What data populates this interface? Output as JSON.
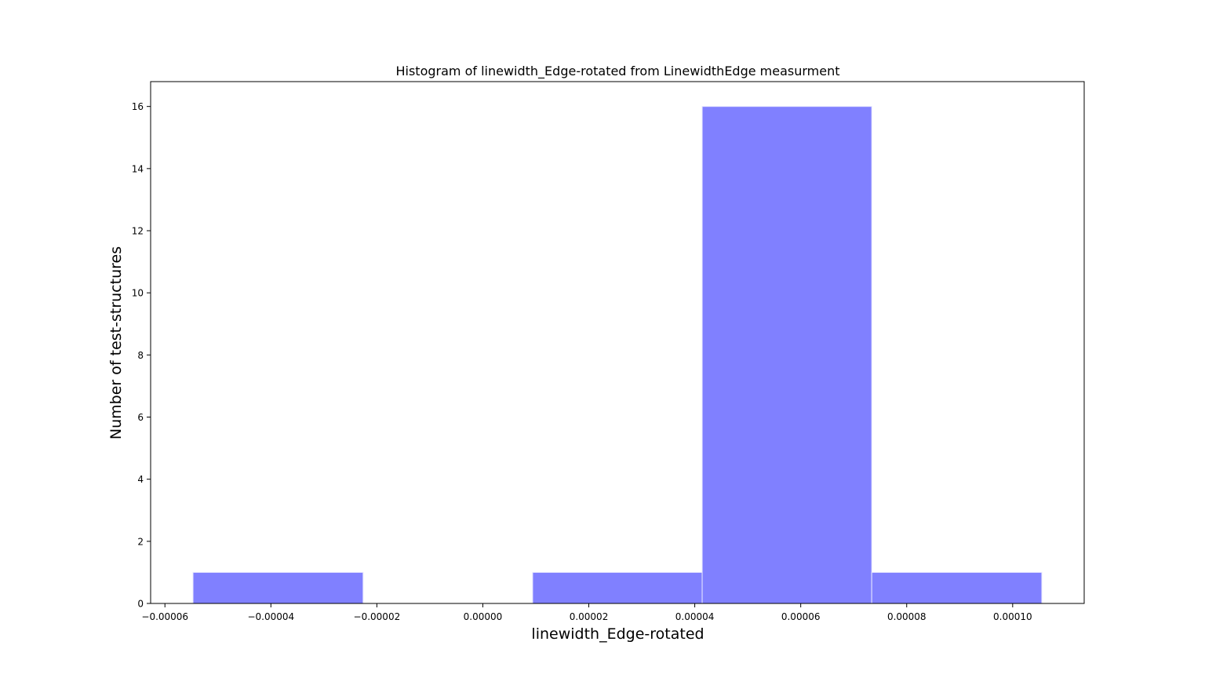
{
  "chart_data": {
    "type": "bar",
    "title": "Histogram of linewidth_Edge-rotated from LinewidthEdge measurment",
    "xlabel": "linewidth_Edge-rotated",
    "ylabel": "Number of test-structures",
    "bins": [
      {
        "x0": -5.47e-05,
        "x1": -2.26e-05,
        "count": 1
      },
      {
        "x0": -2.26e-05,
        "x1": 9.4e-06,
        "count": 0
      },
      {
        "x0": 9.4e-06,
        "x1": 4.14e-05,
        "count": 1
      },
      {
        "x0": 4.14e-05,
        "x1": 7.34e-05,
        "count": 16
      },
      {
        "x0": 7.34e-05,
        "x1": 0.0001055,
        "count": 1
      }
    ],
    "xlim": [
      -6.27e-05,
      0.0001135
    ],
    "ylim": [
      0,
      16.8
    ],
    "xticks": [
      {
        "value": -6e-05,
        "label": "−0.00006"
      },
      {
        "value": -4e-05,
        "label": "−0.00004"
      },
      {
        "value": -2e-05,
        "label": "−0.00002"
      },
      {
        "value": 0,
        "label": "0.00000"
      },
      {
        "value": 2e-05,
        "label": "0.00002"
      },
      {
        "value": 4e-05,
        "label": "0.00004"
      },
      {
        "value": 6e-05,
        "label": "0.00006"
      },
      {
        "value": 8e-05,
        "label": "0.00008"
      },
      {
        "value": 0.0001,
        "label": "0.00010"
      }
    ],
    "yticks": [
      {
        "value": 0,
        "label": "0"
      },
      {
        "value": 2,
        "label": "2"
      },
      {
        "value": 4,
        "label": "4"
      },
      {
        "value": 6,
        "label": "6"
      },
      {
        "value": 8,
        "label": "8"
      },
      {
        "value": 10,
        "label": "10"
      },
      {
        "value": 12,
        "label": "12"
      },
      {
        "value": 14,
        "label": "14"
      },
      {
        "value": 16,
        "label": "16"
      }
    ],
    "bar_color": "#8080ff",
    "bar_edge_color": "#e6e6ff",
    "grid": false,
    "legend": false
  }
}
